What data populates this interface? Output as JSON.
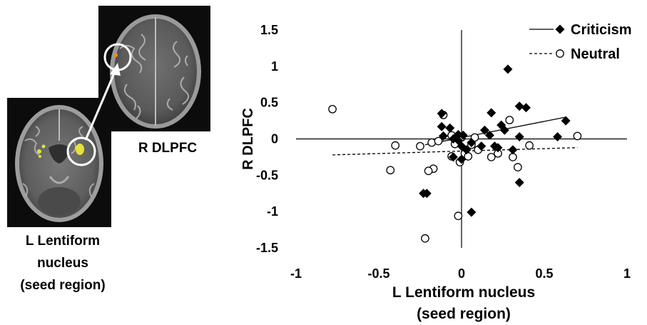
{
  "brain_images": {
    "top_label": "R DLPFC",
    "bottom_label": "L Lentiform\nnucleus\n(seed region)"
  },
  "chart_data": {
    "type": "scatter",
    "title": "",
    "xlabel": "L Lentiform nucleus\n(seed region)",
    "ylabel": "R DLPFC",
    "xlim": [
      -1,
      1
    ],
    "ylim": [
      -1.5,
      1.5
    ],
    "xticks": [
      "-1",
      "-0.5",
      "0",
      "0.5",
      "1"
    ],
    "yticks": [
      "1.5",
      "1",
      "0.5",
      "0",
      "-0.5",
      "-1",
      "-1.5"
    ],
    "legend_position": "top-right",
    "series": [
      {
        "name": "Criticism",
        "marker": "diamond-filled",
        "line": "solid",
        "color": "#000000",
        "points": [
          [
            0.28,
            0.96
          ],
          [
            0.35,
            0.45
          ],
          [
            0.39,
            0.43
          ],
          [
            0.63,
            0.25
          ],
          [
            0.18,
            0.36
          ],
          [
            -0.12,
            0.35
          ],
          [
            -0.12,
            0.17
          ],
          [
            -0.07,
            0.15
          ],
          [
            -0.11,
            0.04
          ],
          [
            -0.05,
            0.0
          ],
          [
            -0.02,
            0.06
          ],
          [
            0.01,
            0.05
          ],
          [
            0.14,
            0.12
          ],
          [
            0.17,
            0.05
          ],
          [
            0.24,
            0.19
          ],
          [
            0.26,
            0.12
          ],
          [
            0.2,
            -0.1
          ],
          [
            0.22,
            -0.12
          ],
          [
            0.31,
            -0.15
          ],
          [
            0.35,
            0.03
          ],
          [
            0.58,
            0.03
          ],
          [
            -0.05,
            -0.25
          ],
          [
            0.0,
            -0.28
          ],
          [
            0.0,
            -0.1
          ],
          [
            0.03,
            -0.15
          ],
          [
            0.06,
            -0.05
          ],
          [
            -0.02,
            -0.02
          ],
          [
            0.12,
            -0.1
          ],
          [
            -0.23,
            -0.75
          ],
          [
            -0.21,
            -0.75
          ],
          [
            0.06,
            -1.01
          ],
          [
            0.35,
            -0.6
          ]
        ],
        "trend": [
          [
            -0.22,
            -0.08
          ],
          [
            0.63,
            0.3
          ]
        ]
      },
      {
        "name": "Neutral",
        "marker": "circle-open",
        "line": "dashed",
        "color": "#000000",
        "points": [
          [
            -0.78,
            0.41
          ],
          [
            -0.4,
            -0.09
          ],
          [
            -0.43,
            -0.43
          ],
          [
            -0.11,
            0.33
          ],
          [
            0.29,
            0.26
          ],
          [
            0.7,
            0.04
          ],
          [
            0.41,
            -0.09
          ],
          [
            0.34,
            -0.39
          ],
          [
            0.18,
            -0.25
          ],
          [
            0.06,
            -0.08
          ],
          [
            0.0,
            0.02
          ],
          [
            -0.06,
            0.05
          ],
          [
            -0.04,
            -0.07
          ],
          [
            0.02,
            -0.2
          ],
          [
            -0.01,
            -0.32
          ],
          [
            -0.06,
            -0.24
          ],
          [
            -0.17,
            -0.41
          ],
          [
            -0.2,
            -0.44
          ],
          [
            0.04,
            -0.24
          ],
          [
            0.1,
            -0.15
          ],
          [
            -0.18,
            -0.05
          ],
          [
            -0.25,
            -0.1
          ],
          [
            -0.02,
            -1.06
          ],
          [
            -0.22,
            -1.37
          ],
          [
            0.22,
            -0.2
          ],
          [
            0.31,
            -0.25
          ],
          [
            -0.14,
            -0.03
          ],
          [
            0.08,
            0.02
          ]
        ],
        "trend": [
          [
            -0.78,
            -0.22
          ],
          [
            0.7,
            -0.12
          ]
        ]
      }
    ]
  }
}
